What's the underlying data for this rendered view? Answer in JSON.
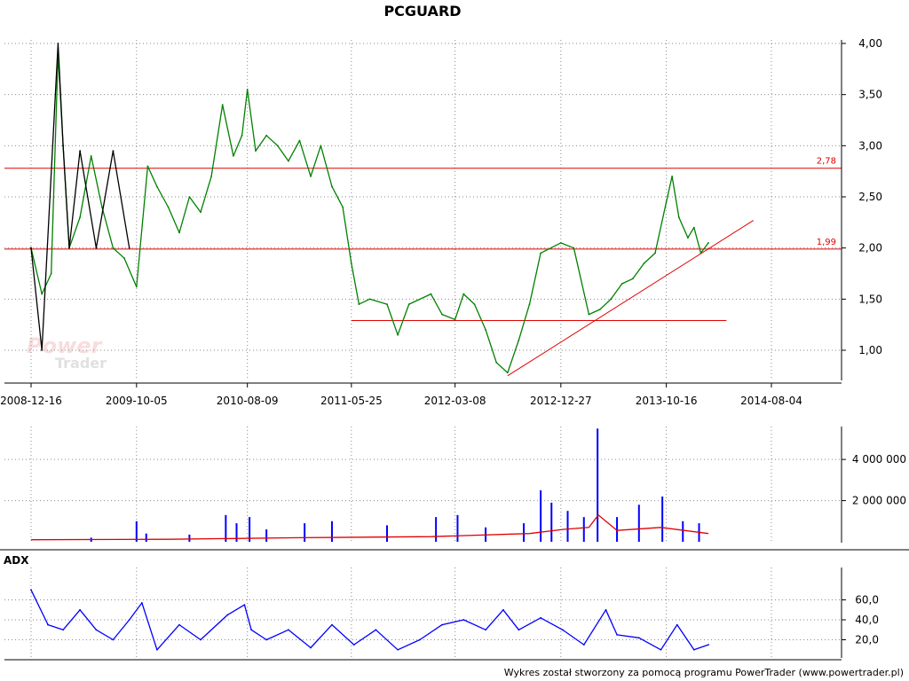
{
  "chart_data": [
    {
      "type": "line",
      "title": "PCGUARD",
      "x_tick_labels": [
        "2008-12-16",
        "2009-10-05",
        "2010-08-09",
        "2011-05-25",
        "2012-03-08",
        "2012-12-27",
        "2013-10-16",
        "2014-08-04"
      ],
      "y_tick_labels": [
        "4,00",
        "3,50",
        "3,00",
        "2,50",
        "2,00",
        "1,50",
        "1,00"
      ],
      "ylim": [
        0.7,
        4.0
      ],
      "grid": true,
      "series": [
        {
          "color": "#008000",
          "x": [
            "2008-12-16",
            "2009-01-15",
            "2009-02-10",
            "2009-03-01",
            "2009-03-15",
            "2009-04-01",
            "2009-05-01",
            "2009-06-01",
            "2009-07-01",
            "2009-08-01",
            "2009-09-01",
            "2009-10-05",
            "2009-11-05",
            "2009-12-01",
            "2010-01-01",
            "2010-02-01",
            "2010-03-01",
            "2010-04-01",
            "2010-05-01",
            "2010-06-01",
            "2010-07-01",
            "2010-07-25",
            "2010-08-09",
            "2010-09-01",
            "2010-10-01",
            "2010-11-01",
            "2010-12-01",
            "2011-01-01",
            "2011-02-01",
            "2011-03-01",
            "2011-04-01",
            "2011-05-01",
            "2011-05-25",
            "2011-06-15",
            "2011-07-15",
            "2011-09-01",
            "2011-10-01",
            "2011-11-01",
            "2012-01-01",
            "2012-02-01",
            "2012-03-08",
            "2012-04-01",
            "2012-05-01",
            "2012-06-01",
            "2012-07-01",
            "2012-08-01",
            "2012-09-01",
            "2012-10-01",
            "2012-11-01",
            "2012-12-27",
            "2013-02-01",
            "2013-03-15",
            "2013-04-15",
            "2013-05-15",
            "2013-06-15",
            "2013-07-15",
            "2013-08-15",
            "2013-09-15",
            "2013-10-16",
            "2013-11-01",
            "2013-11-20",
            "2013-12-15",
            "2014-01-01",
            "2014-01-20",
            "2014-02-10"
          ],
          "values": [
            2.0,
            1.55,
            1.75,
            3.9,
            3.0,
            2.0,
            2.3,
            2.9,
            2.4,
            2.0,
            1.9,
            1.62,
            2.8,
            2.6,
            2.4,
            2.15,
            2.5,
            2.35,
            2.7,
            3.4,
            2.9,
            3.1,
            3.55,
            2.95,
            3.1,
            3.0,
            2.85,
            3.05,
            2.7,
            3.0,
            2.6,
            2.4,
            1.85,
            1.45,
            1.5,
            1.45,
            1.15,
            1.45,
            1.55,
            1.35,
            1.3,
            1.55,
            1.45,
            1.2,
            0.88,
            0.78,
            1.1,
            1.45,
            1.95,
            2.05,
            2.0,
            1.35,
            1.4,
            1.5,
            1.65,
            1.7,
            1.85,
            1.95,
            2.45,
            2.7,
            2.3,
            2.1,
            2.2,
            1.95,
            2.05
          ]
        },
        {
          "color": "#000000",
          "x": [
            "2008-12-16",
            "2009-01-15",
            "2009-03-01",
            "2009-03-15",
            "2009-04-01",
            "2009-05-01",
            "2009-06-15",
            "2009-08-01",
            "2009-09-15"
          ],
          "values": [
            2.0,
            1.0,
            4.0,
            3.0,
            2.0,
            2.95,
            2.0,
            2.95,
            2.0
          ]
        }
      ],
      "lines": [
        {
          "kind": "horizontal",
          "y": 2.78,
          "label": "2,78",
          "from": "2008-12-16",
          "to": "2014-08-04",
          "color": "#e00000"
        },
        {
          "kind": "horizontal",
          "y": 1.99,
          "label": "1,99",
          "from": "2008-12-16",
          "to": "2014-08-04",
          "color": "#e00000"
        },
        {
          "kind": "horizontal",
          "y": 1.29,
          "label": "",
          "from": "2011-05-25",
          "to": "2014-04-01",
          "color": "#e00000"
        },
        {
          "kind": "trend",
          "x1": "2012-08-01",
          "y1": 0.75,
          "x2": "2014-06-15",
          "y2": 2.27,
          "color": "#e00000"
        }
      ],
      "watermark": {
        "line1": "Power",
        "line2": "Trader"
      }
    },
    {
      "type": "bar",
      "title": "",
      "y_tick_labels": [
        "4 000 000",
        "2 000 000"
      ],
      "y_tick_values": [
        4000000,
        2000000
      ],
      "ylim": [
        0,
        5600000
      ],
      "grid": true,
      "series": [
        {
          "color": "#0000ff",
          "x": [
            "2009-06-01",
            "2009-10-05",
            "2009-11-01",
            "2010-03-01",
            "2010-06-10",
            "2010-07-10",
            "2010-08-15",
            "2010-10-01",
            "2011-01-15",
            "2011-04-01",
            "2011-09-01",
            "2012-01-15",
            "2012-03-15",
            "2012-06-01",
            "2012-09-15",
            "2012-11-01",
            "2012-12-01",
            "2013-01-15",
            "2013-03-01",
            "2013-04-08",
            "2013-06-01",
            "2013-08-01",
            "2013-10-05",
            "2013-12-01",
            "2014-01-15"
          ],
          "values": [
            200000,
            1000000,
            400000,
            350000,
            1300000,
            900000,
            1200000,
            600000,
            900000,
            1000000,
            800000,
            1200000,
            1300000,
            700000,
            900000,
            2500000,
            1900000,
            1500000,
            1200000,
            5500000,
            1200000,
            1800000,
            2200000,
            1000000,
            900000
          ]
        }
      ],
      "average": {
        "color": "#e00000",
        "x": [
          "2008-12-16",
          "2010-01-01",
          "2011-01-01",
          "2012-01-01",
          "2012-10-01",
          "2013-01-01",
          "2013-03-15",
          "2013-04-10",
          "2013-06-01",
          "2013-10-01",
          "2014-02-10"
        ],
        "values": [
          100000,
          120000,
          200000,
          250000,
          400000,
          600000,
          700000,
          1300000,
          550000,
          700000,
          400000
        ]
      }
    },
    {
      "type": "line",
      "title": "ADX",
      "y_tick_labels": [
        "60,0",
        "40,0",
        "20,0"
      ],
      "y_tick_values": [
        60,
        40,
        20
      ],
      "ylim": [
        0,
        80
      ],
      "grid": true,
      "series": [
        {
          "color": "#0000ff",
          "x": [
            "2008-12-16",
            "2009-02-01",
            "2009-03-15",
            "2009-05-01",
            "2009-06-15",
            "2009-08-01",
            "2009-09-15",
            "2009-10-20",
            "2009-12-01",
            "2010-02-01",
            "2010-04-01",
            "2010-06-15",
            "2010-08-01",
            "2010-08-20",
            "2010-10-01",
            "2010-12-01",
            "2011-02-01",
            "2011-04-01",
            "2011-06-01",
            "2011-08-01",
            "2011-10-01",
            "2011-12-01",
            "2012-02-01",
            "2012-04-01",
            "2012-06-01",
            "2012-07-20",
            "2012-09-01",
            "2012-11-01",
            "2013-01-01",
            "2013-03-01",
            "2013-05-01",
            "2013-06-01",
            "2013-08-01",
            "2013-10-01",
            "2013-11-15",
            "2014-01-01",
            "2014-02-10"
          ],
          "values": [
            70,
            35,
            30,
            50,
            30,
            20,
            40,
            57,
            10,
            35,
            20,
            45,
            55,
            30,
            20,
            30,
            12,
            35,
            15,
            30,
            10,
            20,
            35,
            40,
            30,
            50,
            30,
            42,
            30,
            15,
            50,
            25,
            22,
            10,
            35,
            10,
            15
          ]
        }
      ]
    }
  ],
  "footer": "Wykres został stworzony za pomocą programu PowerTrader (www.powertrader.pl)"
}
